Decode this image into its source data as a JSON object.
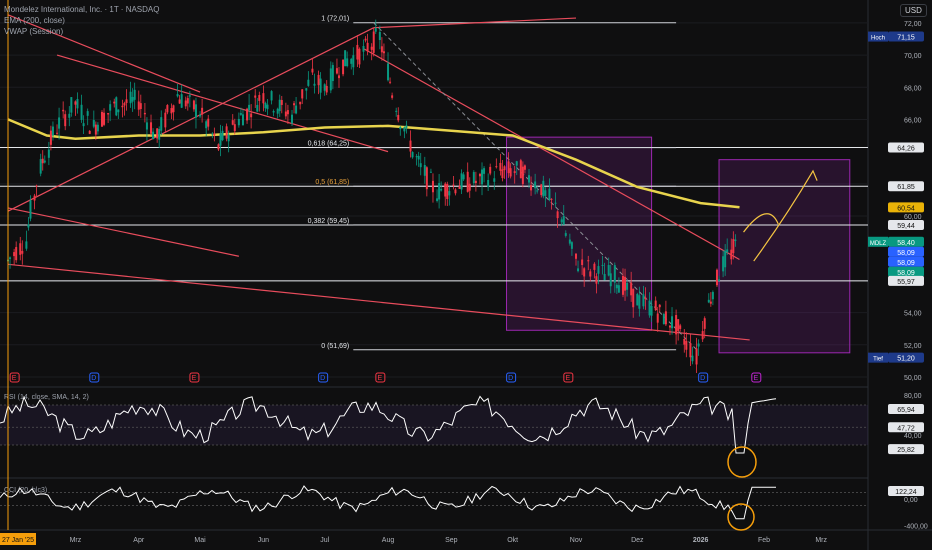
{
  "header": {
    "title": "Mondelez International, Inc. · 1T · NASDAQ",
    "ema": "EMA (200, close)",
    "vwap": "VWAP (Session)",
    "currency": "USD"
  },
  "chart_data": {
    "type": "candlestick",
    "price_axis": {
      "ticks": [
        "72,00",
        "70,00",
        "68,00",
        "66,00",
        "62,00",
        "60,00",
        "56,00",
        "54,00",
        "52,00",
        "50,00"
      ],
      "ylim": [
        49.5,
        72.8
      ]
    },
    "time_axis": {
      "labels": [
        "27 Jan '25",
        "Mrz",
        "Apr",
        "Mai",
        "Jun",
        "Jul",
        "Aug",
        "Sep",
        "Okt",
        "Nov",
        "Dez",
        "2026",
        "Feb",
        "Mrz"
      ]
    },
    "price_badges": [
      {
        "label": "Hoch",
        "value": "71,15",
        "color": "#1e3a8a"
      },
      {
        "label": "",
        "value": "64,26",
        "color": "#e5e7eb"
      },
      {
        "label": "",
        "value": "61,85",
        "color": "#e5e7eb"
      },
      {
        "label": "",
        "value": "60,54",
        "color": "#eab308"
      },
      {
        "label": "",
        "value": "59,44",
        "color": "#e5e7eb"
      },
      {
        "label": "MDLZ",
        "value": "58,40",
        "color": "#089981"
      },
      {
        "label": "",
        "value": "58,09",
        "color": "#2962ff"
      },
      {
        "label": "",
        "value": "58,09",
        "color": "#2962ff"
      },
      {
        "label": "",
        "value": "58,09",
        "color": "#089981"
      },
      {
        "label": "",
        "value": "55,97",
        "color": "#e5e7eb"
      },
      {
        "label": "Tief",
        "value": "51,20",
        "color": "#1e3a8a"
      }
    ],
    "fibonacci": [
      {
        "label": "1 (72,01)",
        "price": 72.01
      },
      {
        "label": "0,618 (64,25)",
        "price": 64.25
      },
      {
        "label": "0,5 (61,85)",
        "price": 61.85
      },
      {
        "label": "0,382 (59,45)",
        "price": 59.45
      },
      {
        "label": "0 (51,69)",
        "price": 51.69
      }
    ],
    "horizontal_lines": [
      64.26,
      61.85,
      59.44,
      55.97
    ],
    "events": [
      "E",
      "D",
      "E",
      "D",
      "E",
      "D",
      "E",
      "D",
      "E"
    ],
    "ema_series": [
      [
        "2025-01-27",
        66.0
      ],
      [
        "2025-02-15",
        65.0
      ],
      [
        "2025-03-01",
        64.8
      ],
      [
        "2025-04-01",
        65.0
      ],
      [
        "2025-05-01",
        65.0
      ],
      [
        "2025-06-01",
        65.2
      ],
      [
        "2025-07-01",
        65.5
      ],
      [
        "2025-08-01",
        65.6
      ],
      [
        "2025-09-01",
        65.3
      ],
      [
        "2025-10-01",
        65.0
      ],
      [
        "2025-11-01",
        63.5
      ],
      [
        "2025-12-01",
        61.8
      ],
      [
        "2026-01-01",
        60.8
      ],
      [
        "2026-01-20",
        60.54
      ]
    ],
    "price_series": [
      [
        "2025-01-27",
        57.2
      ],
      [
        "2025-02-05",
        58.5
      ],
      [
        "2025-02-12",
        63.0
      ],
      [
        "2025-02-20",
        65.5
      ],
      [
        "2025-03-01",
        67.0
      ],
      [
        "2025-03-10",
        65.5
      ],
      [
        "2025-03-20",
        66.8
      ],
      [
        "2025-04-01",
        67.2
      ],
      [
        "2025-04-10",
        64.8
      ],
      [
        "2025-04-20",
        67.5
      ],
      [
        "2025-05-01",
        66.5
      ],
      [
        "2025-05-10",
        64.3
      ],
      [
        "2025-05-20",
        66.0
      ],
      [
        "2025-06-01",
        67.5
      ],
      [
        "2025-06-15",
        66.3
      ],
      [
        "2025-06-25",
        68.5
      ],
      [
        "2025-07-01",
        68.0
      ],
      [
        "2025-07-10",
        69.5
      ],
      [
        "2025-07-20",
        70.2
      ],
      [
        "2025-07-28",
        71.15
      ],
      [
        "2025-08-05",
        67.0
      ],
      [
        "2025-08-15",
        63.5
      ],
      [
        "2025-08-25",
        61.5
      ],
      [
        "2025-09-05",
        62.0
      ],
      [
        "2025-09-15",
        62.2
      ],
      [
        "2025-09-25",
        62.8
      ],
      [
        "2025-10-05",
        62.8
      ],
      [
        "2025-10-15",
        61.8
      ],
      [
        "2025-10-25",
        60.0
      ],
      [
        "2025-11-01",
        57.2
      ],
      [
        "2025-11-10",
        56.5
      ],
      [
        "2025-11-20",
        56.3
      ],
      [
        "2025-12-01",
        54.8
      ],
      [
        "2025-12-10",
        54.2
      ],
      [
        "2025-12-20",
        53.2
      ],
      [
        "2025-12-30",
        51.2
      ],
      [
        "2026-01-05",
        54.5
      ],
      [
        "2026-01-12",
        57.0
      ],
      [
        "2026-01-20",
        58.4
      ]
    ],
    "rsi": {
      "label": "RSI (14, close, SMA, 14, 2)",
      "ticks": [
        "80,00",
        "40,00"
      ],
      "badges": [
        "65,94",
        "47,72",
        "25,82"
      ]
    },
    "cci": {
      "label": "CCI (20, hlc3)",
      "ticks": [
        "0,00",
        "-400,00"
      ],
      "badges": [
        "122,24"
      ]
    },
    "colors": {
      "up": "#089981",
      "down": "#f23645",
      "ema": "#e8d44d",
      "trend": "#e84c5c",
      "box": "#9c27b0"
    }
  }
}
